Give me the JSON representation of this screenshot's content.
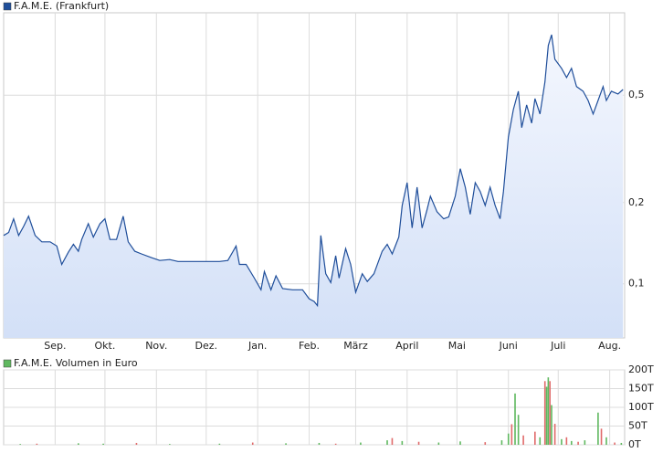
{
  "chart_data": [
    {
      "type": "line",
      "log_scale": true,
      "grid": true,
      "legend": "top-left",
      "x": [
        0,
        3,
        6,
        9,
        12,
        15,
        19,
        23,
        28,
        32,
        35,
        39,
        42,
        45,
        47,
        51,
        54,
        58,
        61,
        64,
        68,
        72,
        75,
        79,
        83,
        89,
        94,
        100,
        105,
        111,
        116,
        122,
        130,
        135,
        140,
        142,
        146,
        151,
        155,
        157,
        161,
        164,
        168,
        174,
        180,
        184,
        187,
        189,
        191,
        194,
        197,
        200,
        202,
        206,
        209,
        212,
        216,
        219,
        223,
        228,
        231,
        234,
        238,
        240,
        243,
        246,
        249,
        252,
        255,
        257,
        261,
        265,
        268,
        272,
        275,
        278,
        281,
        284,
        287,
        290,
        293,
        296,
        299,
        301,
        304,
        307,
        310,
        312,
        315,
        318,
        320,
        323,
        326,
        328,
        330,
        332,
        336,
        339,
        342,
        345,
        349,
        352,
        355,
        358,
        361,
        363,
        366,
        370,
        373
      ],
      "series": [
        {
          "name": "F.A.M.E. (Frankfurt)",
          "color": "#1f4e9a",
          "values": [
            0.151,
            0.155,
            0.174,
            0.151,
            0.163,
            0.178,
            0.151,
            0.143,
            0.143,
            0.138,
            0.118,
            0.131,
            0.14,
            0.132,
            0.146,
            0.167,
            0.149,
            0.167,
            0.174,
            0.146,
            0.146,
            0.178,
            0.143,
            0.132,
            0.129,
            0.125,
            0.122,
            0.123,
            0.121,
            0.121,
            0.121,
            0.121,
            0.121,
            0.122,
            0.138,
            0.118,
            0.118,
            0.105,
            0.095,
            0.111,
            0.095,
            0.107,
            0.096,
            0.095,
            0.095,
            0.088,
            0.086,
            0.083,
            0.151,
            0.109,
            0.101,
            0.127,
            0.105,
            0.135,
            0.118,
            0.093,
            0.109,
            0.102,
            0.109,
            0.132,
            0.14,
            0.129,
            0.149,
            0.195,
            0.237,
            0.161,
            0.228,
            0.161,
            0.188,
            0.211,
            0.185,
            0.174,
            0.177,
            0.211,
            0.267,
            0.228,
            0.181,
            0.237,
            0.22,
            0.195,
            0.228,
            0.195,
            0.174,
            0.22,
            0.35,
            0.443,
            0.517,
            0.379,
            0.46,
            0.394,
            0.486,
            0.426,
            0.559,
            0.764,
            0.838,
            0.679,
            0.629,
            0.581,
            0.629,
            0.538,
            0.517,
            0.478,
            0.426,
            0.478,
            0.538,
            0.478,
            0.517,
            0.505,
            0.525
          ]
        }
      ],
      "xlim": [
        0,
        374
      ],
      "xticks": [
        {
          "value": 31,
          "label": "Sep."
        },
        {
          "value": 61,
          "label": "Okt."
        },
        {
          "value": 92,
          "label": "Nov."
        },
        {
          "value": 122,
          "label": "Dez."
        },
        {
          "value": 153,
          "label": "Jan."
        },
        {
          "value": 184,
          "label": "Feb."
        },
        {
          "value": 212,
          "label": "März"
        },
        {
          "value": 243,
          "label": "April"
        },
        {
          "value": 273,
          "label": "Mai"
        },
        {
          "value": 304,
          "label": "Juni"
        },
        {
          "value": 334,
          "label": "Juli"
        },
        {
          "value": 365,
          "label": "Aug."
        }
      ],
      "ylim": [
        0.063,
        1.01
      ],
      "yticks": [
        {
          "value": 0.1,
          "label": "0,1"
        },
        {
          "value": 0.2,
          "label": "0,2"
        },
        {
          "value": 0.5,
          "label": "0,5"
        }
      ]
    },
    {
      "type": "bar",
      "grid": true,
      "legend": "top-left",
      "x": [
        10,
        20,
        45,
        60,
        80,
        100,
        130,
        150,
        170,
        190,
        200,
        215,
        231,
        234,
        240,
        250,
        262,
        275,
        290,
        300,
        304,
        306,
        308,
        310,
        313,
        320,
        323,
        326,
        327,
        328,
        329,
        330,
        332,
        336,
        339,
        342,
        346,
        350,
        358,
        360,
        363,
        368,
        372
      ],
      "series": [
        {
          "name": "F.A.M.E. Volumen in Euro",
          "color": "#5fb85f",
          "values": [
            2000,
            3000,
            4000,
            3000,
            5000,
            2000,
            3000,
            6000,
            4000,
            5000,
            3000,
            6000,
            12000,
            18000,
            10000,
            8000,
            6000,
            9000,
            7000,
            12000,
            30000,
            55000,
            137000,
            80000,
            25000,
            35000,
            20000,
            170000,
            155000,
            180000,
            170000,
            106000,
            56000,
            15000,
            20000,
            10000,
            8000,
            12000,
            86000,
            43000,
            20000,
            6000,
            5000
          ]
        }
      ],
      "bar_colors": [
        "#5fb85f",
        "#e06a6a",
        "#5fb85f",
        "#5fb85f",
        "#e06a6a",
        "#5fb85f",
        "#5fb85f",
        "#e06a6a",
        "#5fb85f",
        "#5fb85f",
        "#e06a6a",
        "#5fb85f",
        "#5fb85f",
        "#e06a6a",
        "#5fb85f",
        "#e06a6a",
        "#5fb85f",
        "#5fb85f",
        "#e06a6a",
        "#5fb85f",
        "#5fb85f",
        "#e06a6a",
        "#5fb85f",
        "#5fb85f",
        "#e06a6a",
        "#e06a6a",
        "#5fb85f",
        "#e06a6a",
        "#5fb85f",
        "#5fb85f",
        "#e06a6a",
        "#5fb85f",
        "#e06a6a",
        "#5fb85f",
        "#e06a6a",
        "#5fb85f",
        "#e06a6a",
        "#5fb85f",
        "#5fb85f",
        "#e06a6a",
        "#5fb85f",
        "#e06a6a",
        "#5fb85f"
      ],
      "xlim": [
        0,
        374
      ],
      "ylim": [
        0,
        200000
      ],
      "yticks": [
        {
          "value": 0,
          "label": "0T"
        },
        {
          "value": 50000,
          "label": "50T"
        },
        {
          "value": 100000,
          "label": "100T"
        },
        {
          "value": 150000,
          "label": "150T"
        },
        {
          "value": 200000,
          "label": "200T"
        }
      ]
    }
  ]
}
